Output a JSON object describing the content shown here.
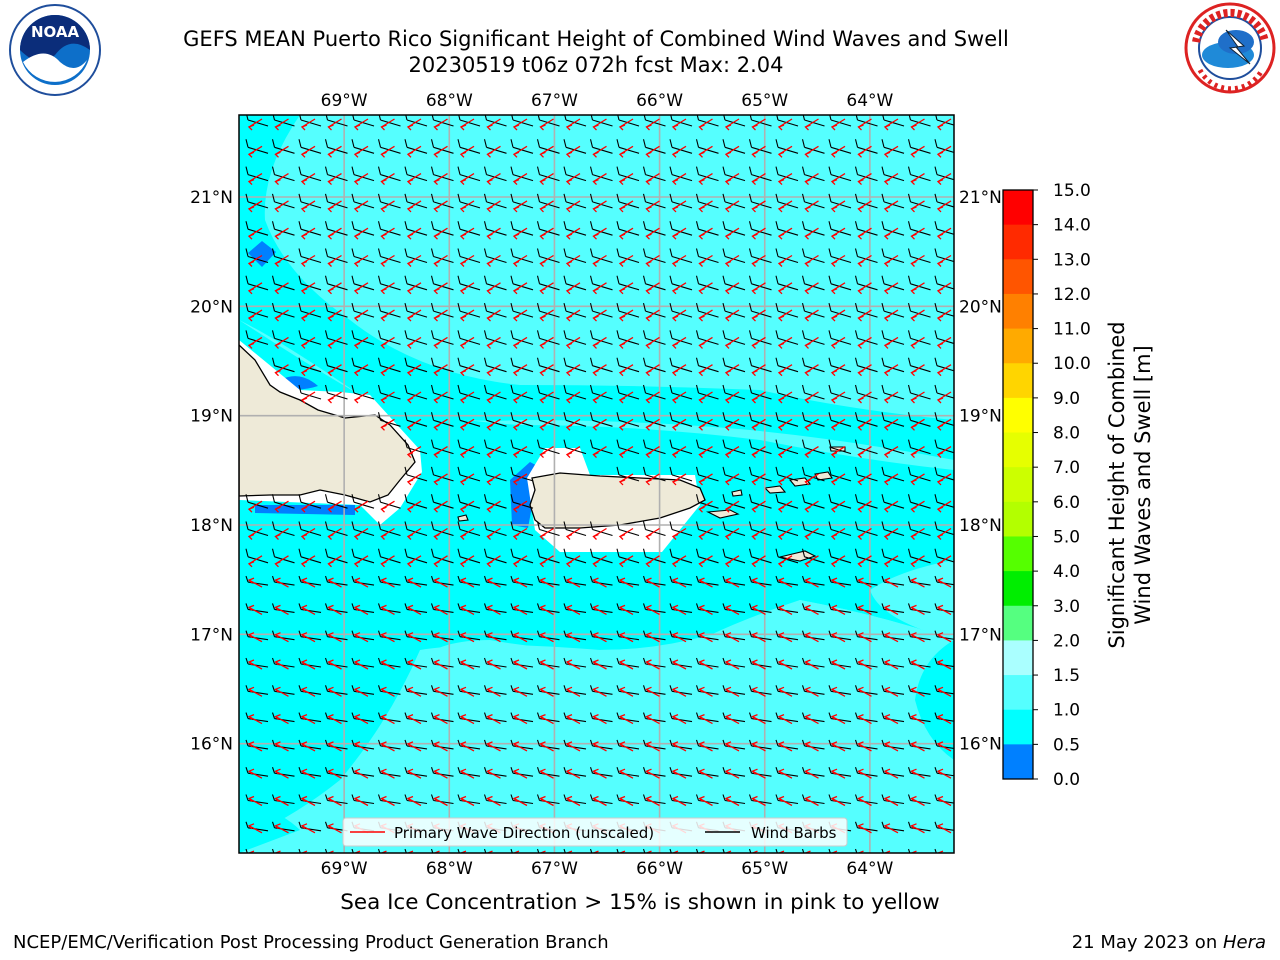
{
  "title": {
    "line1": "GEFS MEAN Puerto Rico Significant Height of Combined Wind Waves and Swell",
    "line2": "20230519 t06z 072h fcst   Max: 2.04"
  },
  "logos": {
    "left": {
      "text": "NOAA",
      "ring": "NATIONAL OCEANIC AND ATMOSPHERIC ADMINISTRATION · U.S. DEPARTMENT OF COMMERCE",
      "icon": "noaa-logo-icon"
    },
    "right": {
      "ring": "NATIONAL WEATHER SERVICE",
      "icon": "nws-logo-icon"
    }
  },
  "map": {
    "lon_labels": [
      "69°W",
      "68°W",
      "67°W",
      "66°W",
      "65°W",
      "64°W"
    ],
    "lat_labels": [
      "21°N",
      "20°N",
      "19°N",
      "18°N",
      "17°N",
      "16°N"
    ],
    "lon_values": [
      -69,
      -68,
      -67,
      -66,
      -65,
      -64
    ],
    "lat_values": [
      21,
      20,
      19,
      18,
      17,
      16
    ],
    "extent": {
      "lon": [
        -70.0,
        -63.2
      ],
      "lat": [
        15.0,
        21.75
      ]
    },
    "gridlines": true,
    "colors": {
      "sea_low": "#00ffff",
      "sea_mid": "#55ffff",
      "sea_high": "#aaffff",
      "shallow": "#0080ff",
      "land": "#eeead8",
      "wave_arrow": "#ff0000",
      "wind_barb": "#000000"
    },
    "legend": {
      "wave_label": "Primary Wave Direction (unscaled)",
      "barb_label": "Wind Barbs",
      "placement": "lower-center"
    }
  },
  "colorbar": {
    "label_line1": "Significant Height of Combined",
    "label_line2": "Wind Waves and Swell [m]",
    "ticks": [
      "15.0",
      "14.0",
      "13.0",
      "12.0",
      "11.0",
      "10.0",
      "9.0",
      "8.0",
      "7.0",
      "6.0",
      "5.0",
      "4.0",
      "3.0",
      "2.0",
      "1.5",
      "1.0",
      "0.5",
      "0.0"
    ],
    "colors": [
      "#ff0000",
      "#ff2a00",
      "#ff5500",
      "#ff8000",
      "#ffaa00",
      "#ffd500",
      "#ffff00",
      "#e6ff00",
      "#ccff00",
      "#b3ff00",
      "#55ff00",
      "#00ee00",
      "#55ff80",
      "#aaffff",
      "#55ffff",
      "#00ffff",
      "#0080ff",
      "#0000ff"
    ]
  },
  "caption": "Sea Ice Concentration > 15% is shown in pink to yellow",
  "footer": {
    "left": "NCEP/EMC/Verification Post Processing Product Generation Branch",
    "right_prefix": "21 May 2023 on ",
    "right_host": "Hera"
  }
}
